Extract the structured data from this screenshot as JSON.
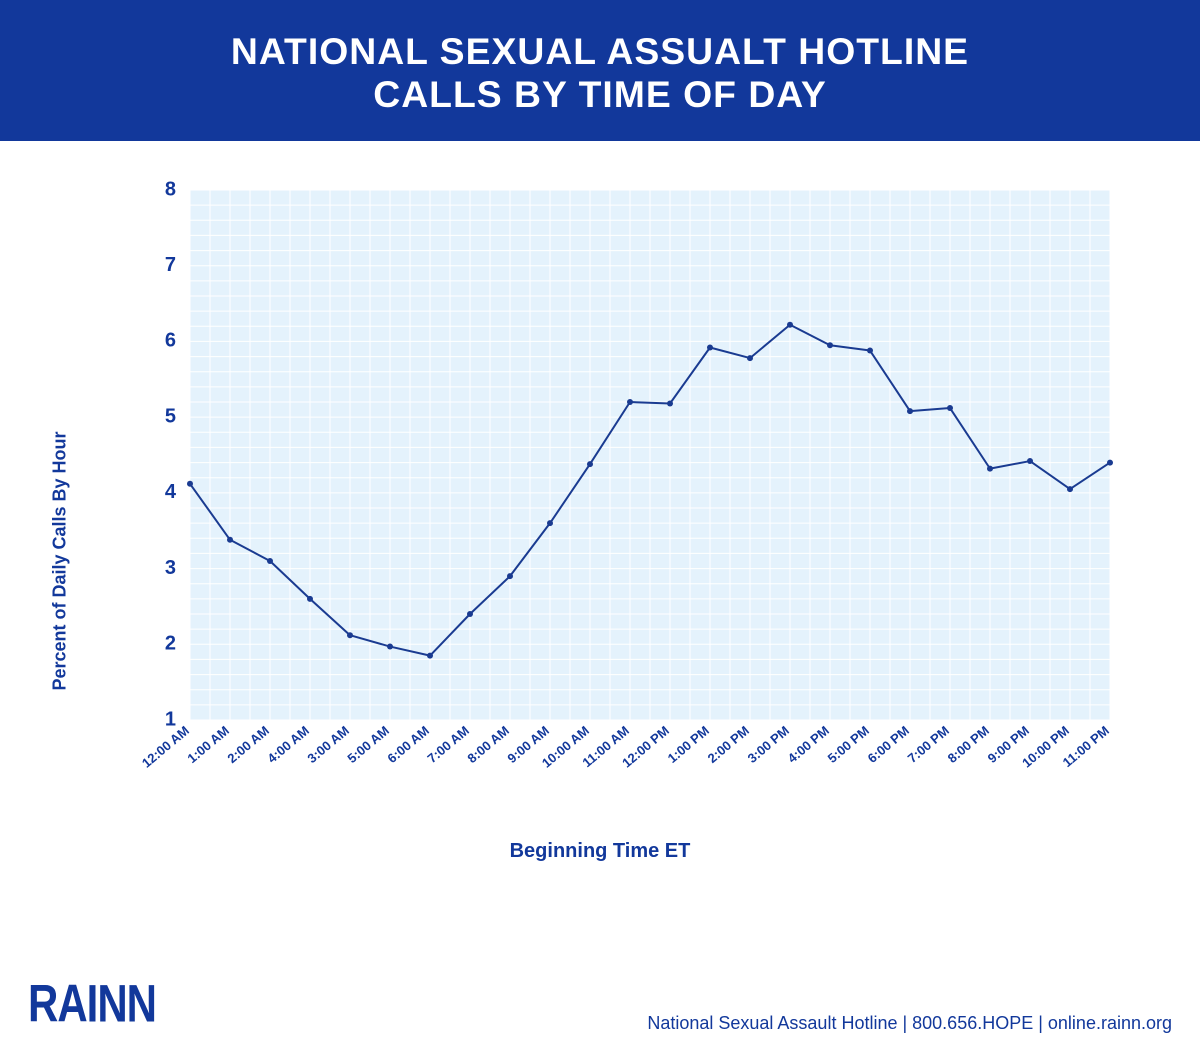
{
  "header": {
    "line1": "NATIONAL SEXUAL ASSUALT HOTLINE",
    "line2": "CALLS BY TIME OF DAY",
    "bg_color": "#12389b",
    "text_color": "#ffffff",
    "font_size_pt": 28
  },
  "chart": {
    "type": "line",
    "plot_bg_color": "#e4f2fc",
    "grid_color": "#ffffff",
    "grid_width": 1,
    "line_color": "#1a3b91",
    "line_width": 2,
    "marker_color": "#1a3b91",
    "marker_radius": 3,
    "axis_text_color": "#12389b",
    "y_axis": {
      "title": "Percent of Daily Calls By Hour",
      "title_fontsize": 18,
      "min": 1,
      "max": 8,
      "tick_step": 1,
      "tick_fontsize": 20,
      "minor_splits": 5
    },
    "x_axis": {
      "title": "Beginning Time ET",
      "title_fontsize": 20,
      "tick_fontsize": 13,
      "tick_rotation_deg": -40,
      "labels": [
        "12:00 AM",
        "1:00 AM",
        "2:00 AM",
        "4:00 AM",
        "3:00 AM",
        "5:00 AM",
        "6:00 AM",
        "7:00 AM",
        "8:00 AM",
        "9:00 AM",
        "10:00 AM",
        "11:00 AM",
        "12:00 PM",
        "1:00 PM",
        "2:00 PM",
        "3:00 PM",
        "4:00 PM",
        "5:00 PM",
        "6:00 PM",
        "7:00 PM",
        "8:00 PM",
        "9:00 PM",
        "10:00 PM",
        "11:00 PM"
      ],
      "minor_splits": 2
    },
    "values": [
      4.12,
      3.38,
      3.1,
      2.6,
      2.12,
      1.97,
      1.85,
      2.4,
      2.9,
      3.6,
      4.38,
      5.2,
      5.18,
      5.92,
      5.78,
      6.22,
      5.95,
      5.88,
      5.08,
      5.12,
      4.32,
      4.42,
      4.05,
      4.4
    ]
  },
  "footer": {
    "logo_text": "RAINN",
    "logo_color": "#12389b",
    "logo_fontsize": 42,
    "right_text": "National Sexual Assault Hotline | 800.656.HOPE | online.rainn.org",
    "right_color": "#12389b",
    "right_fontsize": 18
  }
}
